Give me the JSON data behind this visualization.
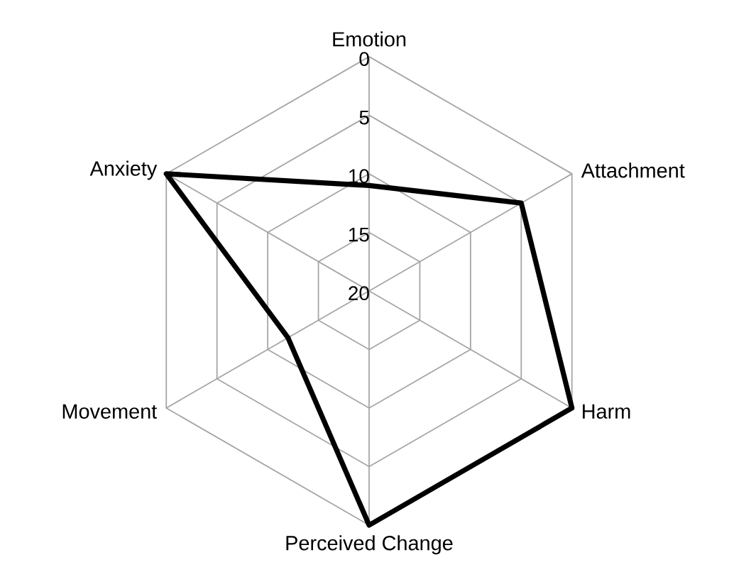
{
  "chart_data": {
    "type": "radar",
    "categories": [
      "Emotion",
      "Attachment",
      "Harm",
      "Perceived Change",
      "Movement",
      "Anxiety"
    ],
    "series": [
      {
        "color": "#000000",
        "values": [
          11,
          5,
          0,
          0,
          12,
          0
        ]
      }
    ],
    "ylim": [
      20,
      0
    ],
    "yticks": [
      0,
      5,
      10,
      15,
      20
    ],
    "grid": true,
    "marker": "none",
    "line_style": "solid"
  }
}
